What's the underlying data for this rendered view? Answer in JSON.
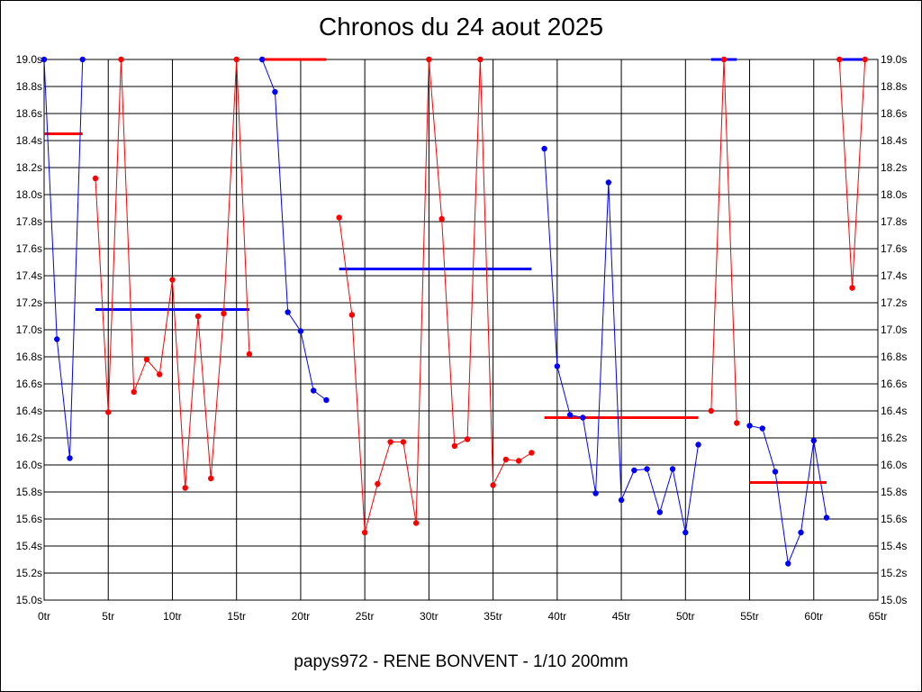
{
  "chart_data": {
    "type": "line",
    "title": "Chronos du 24 aout 2025",
    "subtitle": "papys972 - RENE BONVENT - 1/10 200mm",
    "xlim": [
      0,
      65
    ],
    "ylim": [
      15.0,
      19.0
    ],
    "grid": true,
    "x_ticks": [
      0,
      5,
      10,
      15,
      20,
      25,
      30,
      35,
      40,
      45,
      50,
      55,
      60,
      65
    ],
    "x_tick_labels": [
      "0tr",
      "5tr",
      "10tr",
      "15tr",
      "20tr",
      "25tr",
      "30tr",
      "35tr",
      "40tr",
      "45tr",
      "50tr",
      "55tr",
      "60tr",
      "65tr"
    ],
    "y_ticks": [
      15.0,
      15.2,
      15.4,
      15.6,
      15.8,
      16.0,
      16.2,
      16.4,
      16.6,
      16.8,
      17.0,
      17.2,
      17.4,
      17.6,
      17.8,
      18.0,
      18.2,
      18.4,
      18.6,
      18.8,
      19.0
    ],
    "y_tick_labels": [
      "15.0s",
      "15.2s",
      "15.4s",
      "15.6s",
      "15.8s",
      "16.0s",
      "16.2s",
      "16.4s",
      "16.6s",
      "16.8s",
      "17.0s",
      "17.2s",
      "17.4s",
      "17.6s",
      "17.8s",
      "18.0s",
      "18.2s",
      "18.4s",
      "18.6s",
      "18.8s",
      "19.0s"
    ],
    "colors": {
      "blue": "#0000ff",
      "red": "#ff0000",
      "grid": "#000000"
    },
    "series": [
      {
        "color": "blue",
        "points": [
          [
            0,
            19.0
          ],
          [
            1,
            16.93
          ],
          [
            2,
            16.05
          ],
          [
            3,
            19.0
          ]
        ]
      },
      {
        "color": "red",
        "points": [
          [
            4,
            18.12
          ],
          [
            5,
            16.39
          ],
          [
            6,
            19.0
          ],
          [
            7,
            16.54
          ],
          [
            8,
            16.78
          ],
          [
            9,
            16.67
          ],
          [
            10,
            17.37
          ],
          [
            11,
            15.83
          ],
          [
            12,
            17.1
          ],
          [
            13,
            15.9
          ],
          [
            14,
            17.12
          ],
          [
            15,
            19.0
          ],
          [
            16,
            16.82
          ]
        ]
      },
      {
        "color": "blue",
        "points": [
          [
            17,
            19.0
          ],
          [
            18,
            18.76
          ],
          [
            19,
            17.13
          ],
          [
            20,
            16.99
          ],
          [
            21,
            16.55
          ],
          [
            22,
            16.48
          ]
        ]
      },
      {
        "color": "red",
        "points": [
          [
            23,
            17.83
          ],
          [
            24,
            17.11
          ],
          [
            25,
            15.5
          ],
          [
            26,
            15.86
          ],
          [
            27,
            16.17
          ],
          [
            28,
            16.17
          ],
          [
            29,
            15.57
          ],
          [
            30,
            19.0
          ],
          [
            31,
            17.82
          ],
          [
            32,
            16.14
          ],
          [
            33,
            16.19
          ],
          [
            34,
            19.0
          ],
          [
            35,
            15.85
          ],
          [
            36,
            16.04
          ],
          [
            37,
            16.03
          ],
          [
            38,
            16.09
          ]
        ]
      },
      {
        "color": "blue",
        "points": [
          [
            39,
            18.34
          ],
          [
            40,
            16.73
          ],
          [
            41,
            16.37
          ],
          [
            42,
            16.35
          ],
          [
            43,
            15.79
          ],
          [
            44,
            18.09
          ],
          [
            45,
            15.74
          ],
          [
            46,
            15.96
          ],
          [
            47,
            15.97
          ],
          [
            48,
            15.65
          ],
          [
            49,
            15.97
          ],
          [
            50,
            15.5
          ],
          [
            51,
            16.15
          ]
        ]
      },
      {
        "color": "red",
        "points": [
          [
            52,
            16.4
          ],
          [
            53,
            19.0
          ],
          [
            54,
            16.31
          ]
        ]
      },
      {
        "color": "blue",
        "points": [
          [
            55,
            16.29
          ],
          [
            56,
            16.27
          ],
          [
            57,
            15.95
          ],
          [
            58,
            15.27
          ],
          [
            59,
            15.5
          ],
          [
            60,
            16.18
          ],
          [
            61,
            15.61
          ]
        ]
      },
      {
        "color": "red",
        "points": [
          [
            62,
            19.0
          ],
          [
            63,
            17.31
          ],
          [
            64,
            19.0
          ]
        ]
      }
    ],
    "averages": [
      {
        "color": "red",
        "x": [
          0,
          3
        ],
        "y": 18.45
      },
      {
        "color": "blue",
        "x": [
          4,
          16
        ],
        "y": 17.15
      },
      {
        "color": "red",
        "x": [
          17,
          22
        ],
        "y": 19.0
      },
      {
        "color": "blue",
        "x": [
          23,
          38
        ],
        "y": 17.45
      },
      {
        "color": "red",
        "x": [
          39,
          51
        ],
        "y": 16.35
      },
      {
        "color": "blue",
        "x": [
          52,
          54
        ],
        "y": 19.0
      },
      {
        "color": "red",
        "x": [
          55,
          61
        ],
        "y": 15.87
      },
      {
        "color": "blue",
        "x": [
          62,
          64
        ],
        "y": 19.0
      }
    ]
  }
}
